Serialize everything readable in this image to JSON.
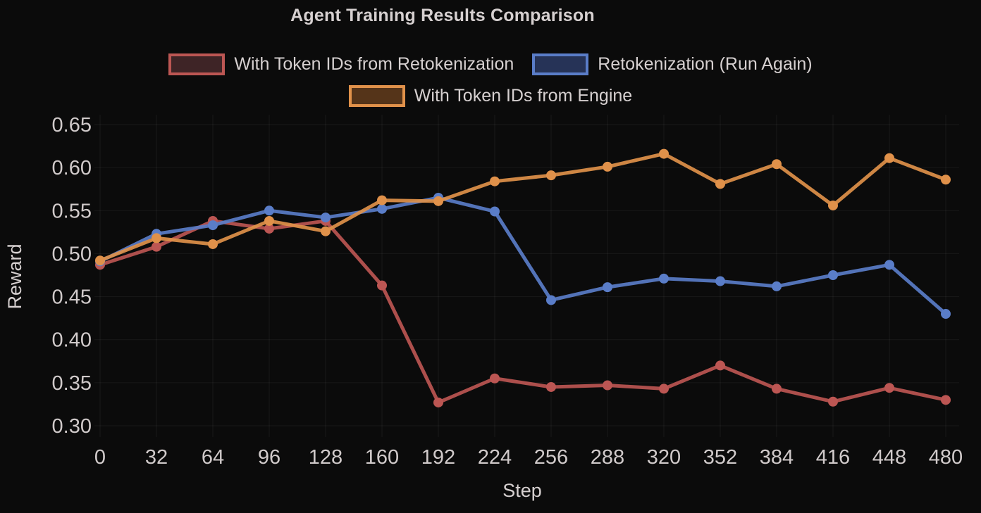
{
  "title": "Agent Training Results Comparison",
  "style": {
    "background": "#0b0b0b",
    "text_color": "#d6d0d0",
    "tick_color": "#d0caca",
    "grid_color": "rgba(255,255,255,0.06)"
  },
  "chart_data": {
    "type": "line",
    "title": "Agent Training Results Comparison",
    "xlabel": "Step",
    "ylabel": "Reward",
    "x": [
      0,
      32,
      64,
      96,
      128,
      160,
      192,
      224,
      256,
      288,
      320,
      352,
      384,
      416,
      448,
      480
    ],
    "xticks": [
      0,
      32,
      64,
      96,
      128,
      160,
      192,
      224,
      256,
      288,
      320,
      352,
      384,
      416,
      448,
      480
    ],
    "yticks": [
      0.3,
      0.35,
      0.4,
      0.45,
      0.5,
      0.55,
      0.6,
      0.65
    ],
    "ylim": [
      0.287,
      0.661
    ],
    "xlim": [
      -3,
      488
    ],
    "grid": true,
    "legend_position": "top-center, two rows",
    "series": [
      {
        "name": "With Token IDs from Retokenization",
        "color": "#bc5653",
        "legend_fill": "#3e2426",
        "values": [
          0.487,
          0.508,
          0.538,
          0.529,
          0.538,
          0.463,
          0.327,
          0.355,
          0.345,
          0.347,
          0.343,
          0.37,
          0.343,
          0.328,
          0.344,
          0.33
        ]
      },
      {
        "name": "Retokenization (Run Again)",
        "color": "#5a7dc8",
        "legend_fill": "#263357",
        "values": [
          0.491,
          0.523,
          0.533,
          0.55,
          0.542,
          0.552,
          0.565,
          0.549,
          0.446,
          0.461,
          0.471,
          0.468,
          0.462,
          0.475,
          0.487,
          0.43
        ]
      },
      {
        "name": "With Token IDs from Engine",
        "color": "#e0914a",
        "legend_fill": "#553419",
        "values": [
          0.492,
          0.518,
          0.511,
          0.538,
          0.526,
          0.562,
          0.561,
          0.584,
          0.591,
          0.601,
          0.616,
          0.581,
          0.604,
          0.556,
          0.611,
          0.586
        ]
      }
    ]
  }
}
